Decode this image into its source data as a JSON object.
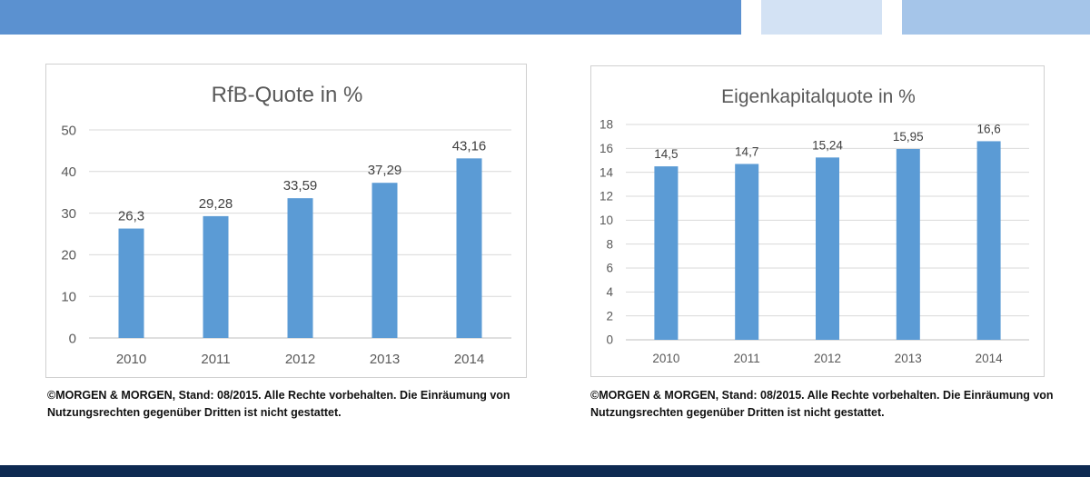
{
  "colors": {
    "bar": "#5b9bd5",
    "grid": "#d9d9d9",
    "axis_text": "#595959",
    "label_text": "#404040",
    "title_text": "#595959"
  },
  "chart_data": [
    {
      "type": "bar",
      "title": "RfB-Quote in %",
      "categories": [
        "2010",
        "2011",
        "2012",
        "2013",
        "2014"
      ],
      "values": [
        26.3,
        29.28,
        33.59,
        37.29,
        43.16
      ],
      "data_labels": [
        "26,3",
        "29,28",
        "33,59",
        "37,29",
        "43,16"
      ],
      "ylim": [
        0,
        50
      ],
      "yticks": [
        "0",
        "10",
        "20",
        "30",
        "40",
        "50"
      ],
      "xlabel": "",
      "ylabel": "",
      "grid": true
    },
    {
      "type": "bar",
      "title": "Eigenkapitalquote in %",
      "categories": [
        "2010",
        "2011",
        "2012",
        "2013",
        "2014"
      ],
      "values": [
        14.5,
        14.7,
        15.24,
        15.95,
        16.6
      ],
      "data_labels": [
        "14,5",
        "14,7",
        "15,24",
        "15,95",
        "16,6"
      ],
      "ylim": [
        0,
        18
      ],
      "yticks": [
        "0",
        "2",
        "4",
        "6",
        "8",
        "10",
        "12",
        "14",
        "16",
        "18"
      ],
      "xlabel": "",
      "ylabel": "",
      "grid": true
    }
  ],
  "captions": [
    {
      "line1": "©MORGEN & MORGEN, Stand: 08/2015. Alle Rechte vorbehalten. Die Einräumung von",
      "line2": "Nutzungsrechten gegenüber Dritten ist nicht gestattet."
    },
    {
      "line1": "©MORGEN & MORGEN, Stand: 08/2015. Alle Rechte vorbehalten. Die Einräumung von",
      "line2": "Nutzungsrechten gegenüber Dritten ist nicht gestattet."
    }
  ]
}
